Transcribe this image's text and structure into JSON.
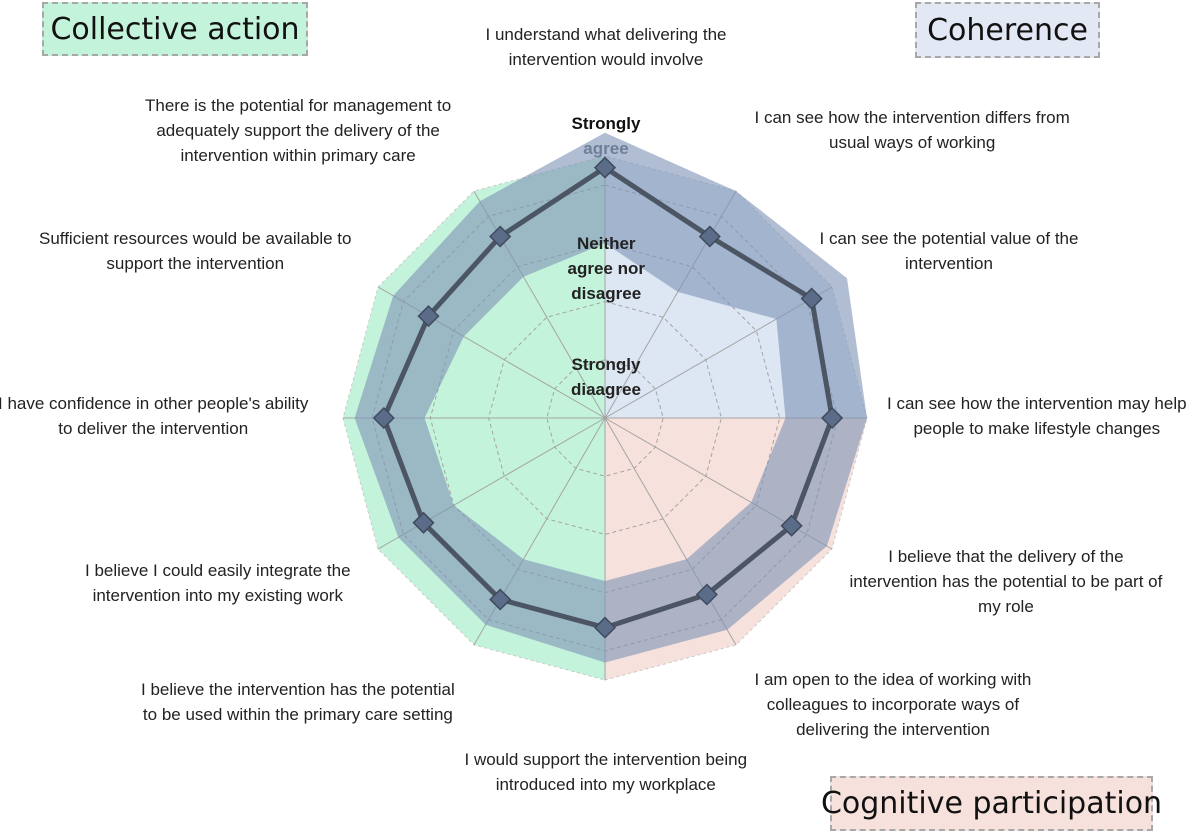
{
  "chart_data": {
    "type": "radar",
    "scale_labels": [
      [
        "Strongly",
        "agree"
      ],
      [
        "Neither",
        "agree nor",
        "disagree"
      ],
      [
        "Strongly",
        "diaagree"
      ]
    ],
    "rlim": [
      1,
      5
    ],
    "grid": true,
    "axes": [
      [
        "I understand what delivering the",
        "intervention would involve"
      ],
      [
        "I can see how the intervention differs from",
        "usual ways of working"
      ],
      [
        "I can see the potential value of the",
        "intervention"
      ],
      [
        "I can see how the intervention may help",
        "people to make lifestyle changes"
      ],
      [
        "I believe that the delivery of the",
        "intervention has the potential to be part of",
        "my role"
      ],
      [
        "I am open to the idea of working with",
        "colleagues to incorporate ways of",
        "delivering the intervention"
      ],
      [
        "I would support the intervention being",
        "introduced into my workplace"
      ],
      [
        "I believe the intervention has the potential",
        "to be used within the primary care setting"
      ],
      [
        "I believe I could easily integrate the",
        "intervention into my existing work"
      ],
      [
        "I have confidence in other people's ability",
        "to deliver the intervention"
      ],
      [
        "Sufficient resources would be available to",
        "support the intervention"
      ],
      [
        "There is the potential for management to",
        "adequately support  the delivery of the",
        "intervention within primary care"
      ]
    ],
    "mean": [
      4.8,
      4.1,
      4.6,
      4.4,
      4.2,
      4.0,
      4.1,
      4.1,
      4.1,
      4.3,
      4.0,
      4.1
    ],
    "upper": [
      5.4,
      5.0,
      5.3,
      5.0,
      4.9,
      4.7,
      4.7,
      4.6,
      4.6,
      4.8,
      4.7,
      4.8
    ],
    "lower": [
      3.5,
      3.0,
      3.9,
      3.6,
      3.4,
      3.3,
      3.3,
      3.3,
      3.5,
      3.6,
      3.3,
      3.3
    ],
    "domains": [
      {
        "name": "Coherence",
        "color": "#dde6f3",
        "axes": [
          0,
          1,
          2,
          3
        ]
      },
      {
        "name": "Cognitive participation",
        "color": "#f7e1dc",
        "axes": [
          3,
          4,
          5,
          6
        ]
      },
      {
        "name": "Collective action",
        "color": "#c4f3dc",
        "axes": [
          6,
          7,
          8,
          9,
          10,
          11,
          0
        ]
      }
    ],
    "colors": {
      "band": "#7f95b6",
      "line": "#4c5563",
      "marker": "#5a6c88",
      "grid": "#a4a4a4"
    }
  },
  "domain_labels": {
    "collective": "Collective action",
    "coherence": "Coherence",
    "cognitive": "Cognitive participation"
  }
}
